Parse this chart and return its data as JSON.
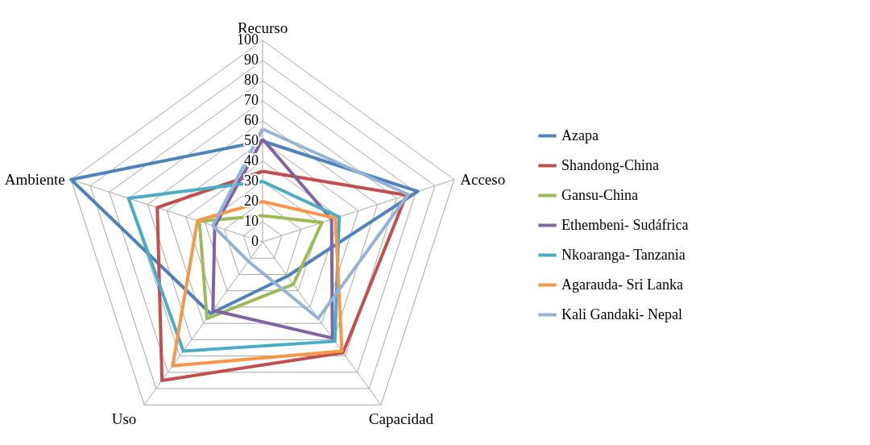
{
  "chart_data": {
    "type": "radar",
    "categories": [
      "Recurso",
      "Acceso",
      "Capacidad",
      "Uso",
      "Ambiente"
    ],
    "ylim": [
      0,
      100
    ],
    "yticks": [
      0,
      10,
      20,
      30,
      40,
      50,
      60,
      70,
      80,
      90,
      100
    ],
    "grid": true,
    "legend": "right",
    "marker": "none",
    "series": [
      {
        "name": "Azapa",
        "color": "#4f81bd",
        "values": [
          50,
          81,
          21,
          44,
          100
        ]
      },
      {
        "name": "Shandong-China",
        "color": "#c0504d",
        "values": [
          35,
          75,
          68,
          85,
          55
        ]
      },
      {
        "name": "Gansu-China",
        "color": "#9bbb59",
        "values": [
          13,
          31,
          26,
          47,
          33
        ]
      },
      {
        "name": "Ethembeni- Sudáfrica",
        "color": "#8064a2",
        "values": [
          51,
          36,
          59,
          42,
          25
        ]
      },
      {
        "name": "Nkoaranga- Tanzania",
        "color": "#4bacc6",
        "values": [
          30,
          40,
          61,
          67,
          70
        ]
      },
      {
        "name": "Agarauda- Sri Lanka",
        "color": "#f79646",
        "values": [
          20,
          38,
          67,
          76,
          34
        ]
      },
      {
        "name": "Kali Gandaki- Nepal",
        "color": "#95b3d7",
        "values": [
          56,
          76,
          47,
          12,
          26
        ]
      }
    ]
  }
}
